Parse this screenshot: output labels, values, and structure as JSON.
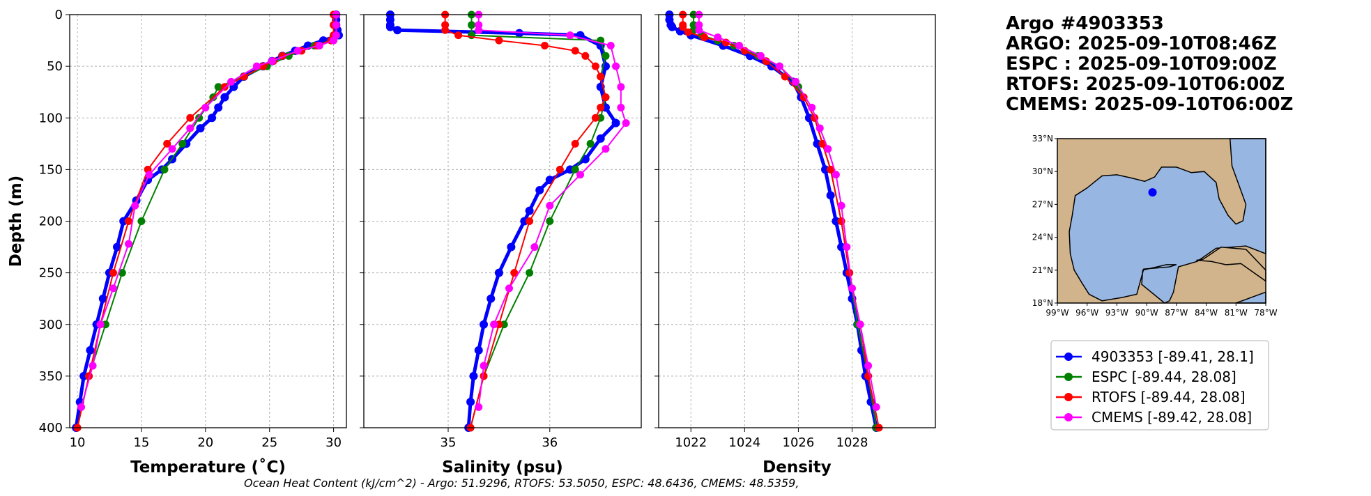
{
  "header": {
    "lines": [
      "Argo #4903353",
      "ARGO: 2025-09-10T08:46Z",
      "ESPC : 2025-09-10T09:00Z",
      "RTOFS: 2025-09-10T06:00Z",
      "CMEMS: 2025-09-10T06:00Z"
    ]
  },
  "footer": "Ocean Heat Content (kJ/cm^2) - Argo: 51.9296,  RTOFS: 53.5050,  ESPC: 48.6436,  CMEMS: 48.5359,",
  "legend": [
    {
      "label": "4903353 [-89.41, 28.1]",
      "color": "#0000ff"
    },
    {
      "label": "ESPC [-89.44, 28.08]",
      "color": "#008000"
    },
    {
      "label": "RTOFS [-89.44, 28.08]",
      "color": "#ff0000"
    },
    {
      "label": "CMEMS [-89.42, 28.08]",
      "color": "#ff00ff"
    }
  ],
  "map": {
    "lat_ticks": [
      "33°N",
      "30°N",
      "27°N",
      "24°N",
      "21°N",
      "18°N"
    ],
    "lon_ticks": [
      "99°W",
      "96°W",
      "93°W",
      "90°W",
      "87°W",
      "84°W",
      "81°W",
      "78°W"
    ],
    "float_lon": -89.41,
    "float_lat": 28.1,
    "land": "#d2b48c",
    "ocean": "#97b6e1"
  },
  "chart_data": [
    {
      "type": "line",
      "xlabel": "Temperature (˚C)",
      "ylabel": "Depth (m)",
      "xlim": [
        9.4,
        31
      ],
      "ylim": [
        400,
        0
      ],
      "xticks": [
        10,
        15,
        20,
        25,
        30
      ],
      "yticks": [
        0,
        50,
        100,
        150,
        200,
        250,
        300,
        350,
        400
      ],
      "grid": true,
      "series": [
        {
          "name": "4903353",
          "depth": [
            0,
            5,
            10,
            15,
            20,
            25,
            30,
            35,
            40,
            45,
            50,
            60,
            70,
            80,
            90,
            100,
            110,
            125,
            140,
            150,
            160,
            180,
            200,
            225,
            250,
            275,
            300,
            325,
            350,
            375,
            400
          ],
          "values": [
            30.2,
            30.2,
            30.2,
            30.3,
            30.4,
            29.2,
            28,
            27,
            26,
            25.2,
            24.5,
            23,
            22.2,
            21.5,
            21,
            20.5,
            19.6,
            18.5,
            17.4,
            16.6,
            15.5,
            14.6,
            13.6,
            13.1,
            12.5,
            12,
            11.5,
            11,
            10.5,
            10.2,
            9.9
          ]
        },
        {
          "name": "ESPC",
          "depth": [
            0,
            10,
            20,
            25,
            30,
            40,
            50,
            60,
            70,
            80,
            100,
            125,
            150,
            200,
            250,
            300,
            350,
            400
          ],
          "values": [
            30,
            30,
            30,
            29.8,
            28.5,
            26.5,
            24.8,
            23,
            21,
            20.6,
            19.5,
            18.2,
            16.8,
            15,
            13.5,
            12.2,
            10.9,
            10
          ]
        },
        {
          "name": "RTOFS",
          "depth": [
            0,
            10,
            20,
            25,
            30,
            35,
            40,
            45,
            50,
            60,
            70,
            100,
            125,
            150,
            200,
            250,
            300,
            350,
            400
          ],
          "values": [
            30,
            30,
            30,
            29.8,
            28.7,
            27.5,
            26,
            25.3,
            24.5,
            23,
            21.5,
            18.8,
            17,
            15.5,
            14,
            12.8,
            11.8,
            10.9,
            10
          ]
        },
        {
          "name": "CMEMS",
          "depth": [
            0,
            10,
            20,
            25,
            30,
            35,
            45,
            50,
            65,
            90,
            110,
            130,
            155,
            185,
            222,
            265,
            300,
            340,
            380
          ],
          "values": [
            30.2,
            30.2,
            30.2,
            30,
            28.9,
            27.2,
            25.2,
            24,
            22,
            20,
            18.8,
            17.4,
            15.6,
            14.5,
            14,
            12.8,
            11.8,
            11.2,
            10.3
          ]
        }
      ]
    },
    {
      "type": "line",
      "xlabel": "Salinity (psu)",
      "ylabel": "",
      "xlim": [
        34.17,
        36.9
      ],
      "ylim": [
        400,
        0
      ],
      "xticks": [
        35,
        36
      ],
      "grid": true,
      "series": [
        {
          "name": "4903353",
          "depth": [
            0,
            5,
            10,
            12,
            15,
            18,
            20,
            30,
            50,
            70,
            90,
            105,
            120,
            140,
            150,
            160,
            170,
            190,
            200,
            225,
            250,
            275,
            300,
            325,
            350,
            375,
            400
          ],
          "values": [
            34.43,
            34.43,
            34.43,
            34.43,
            34.5,
            35.7,
            36.3,
            36.5,
            36.55,
            36.5,
            36.55,
            36.65,
            36.5,
            36.35,
            36.2,
            36.0,
            35.9,
            35.8,
            35.75,
            35.62,
            35.5,
            35.42,
            35.35,
            35.3,
            35.25,
            35.22,
            35.2
          ]
        },
        {
          "name": "ESPC",
          "depth": [
            0,
            10,
            20,
            25,
            40,
            60,
            80,
            100,
            125,
            150,
            200,
            250,
            300,
            350,
            400
          ],
          "values": [
            35.23,
            35.23,
            35.23,
            36.5,
            36.55,
            36.5,
            36.55,
            36.5,
            36.4,
            36.25,
            36.0,
            35.8,
            35.55,
            35.35,
            35.22
          ]
        },
        {
          "name": "RTOFS",
          "depth": [
            0,
            10,
            15,
            20,
            25,
            30,
            35,
            40,
            50,
            60,
            80,
            90,
            100,
            125,
            150,
            200,
            250,
            300,
            350,
            400
          ],
          "values": [
            34.97,
            34.97,
            34.97,
            35.1,
            35.5,
            35.95,
            36.25,
            36.35,
            36.45,
            36.5,
            36.55,
            36.5,
            36.45,
            36.25,
            36.1,
            35.8,
            35.65,
            35.5,
            35.35,
            35.22
          ]
        },
        {
          "name": "CMEMS",
          "depth": [
            0,
            10,
            15,
            20,
            30,
            50,
            70,
            90,
            105,
            130,
            155,
            185,
            225,
            265,
            300,
            340,
            380
          ],
          "values": [
            35.3,
            35.3,
            35.3,
            36.2,
            36.6,
            36.65,
            36.7,
            36.7,
            36.75,
            36.55,
            36.3,
            36.0,
            35.85,
            35.6,
            35.45,
            35.35,
            35.3
          ]
        }
      ]
    },
    {
      "type": "line",
      "xlabel": "Density",
      "ylabel": "",
      "xlim": [
        1020.8,
        1031.1
      ],
      "ylim": [
        400,
        0
      ],
      "xticks": [
        1022,
        1024,
        1026,
        1028
      ],
      "grid": true,
      "series": [
        {
          "name": "4903353",
          "depth": [
            0,
            5,
            10,
            12,
            16,
            20,
            30,
            40,
            50,
            65,
            80,
            100,
            125,
            150,
            175,
            200,
            225,
            250,
            275,
            300,
            325,
            350,
            375,
            400
          ],
          "values": [
            1021.2,
            1021.2,
            1021.25,
            1021.3,
            1021.6,
            1022.0,
            1023.2,
            1024.2,
            1025.0,
            1025.8,
            1026.1,
            1026.4,
            1026.7,
            1027.0,
            1027.2,
            1027.4,
            1027.6,
            1027.8,
            1028.0,
            1028.2,
            1028.35,
            1028.5,
            1028.7,
            1028.9
          ]
        },
        {
          "name": "ESPC",
          "depth": [
            0,
            10,
            15,
            20,
            25,
            30,
            40,
            50,
            70,
            100,
            125,
            150,
            200,
            250,
            300,
            350,
            400
          ],
          "values": [
            1022.1,
            1022.1,
            1022.1,
            1022.4,
            1023,
            1023.6,
            1024.5,
            1025.3,
            1026.0,
            1026.6,
            1026.9,
            1027.2,
            1027.6,
            1027.9,
            1028.2,
            1028.6,
            1028.9
          ]
        },
        {
          "name": "RTOFS",
          "depth": [
            0,
            10,
            12,
            17,
            22,
            27,
            35,
            45,
            60,
            80,
            100,
            125,
            150,
            200,
            250,
            300,
            350,
            400
          ],
          "values": [
            1021.7,
            1021.7,
            1021.7,
            1021.9,
            1022.5,
            1023.3,
            1024,
            1024.8,
            1025.5,
            1026.2,
            1026.6,
            1026.9,
            1027.2,
            1027.6,
            1027.9,
            1028.3,
            1028.6,
            1029
          ]
        },
        {
          "name": "CMEMS",
          "depth": [
            0,
            10,
            15,
            22,
            30,
            40,
            50,
            65,
            90,
            110,
            130,
            155,
            185,
            225,
            265,
            300,
            340,
            380
          ],
          "values": [
            1022.3,
            1022.3,
            1022.3,
            1023.0,
            1023.8,
            1024.6,
            1025.3,
            1025.9,
            1026.5,
            1026.8,
            1027.1,
            1027.4,
            1027.6,
            1027.8,
            1028.0,
            1028.3,
            1028.6,
            1028.9
          ]
        }
      ]
    }
  ]
}
